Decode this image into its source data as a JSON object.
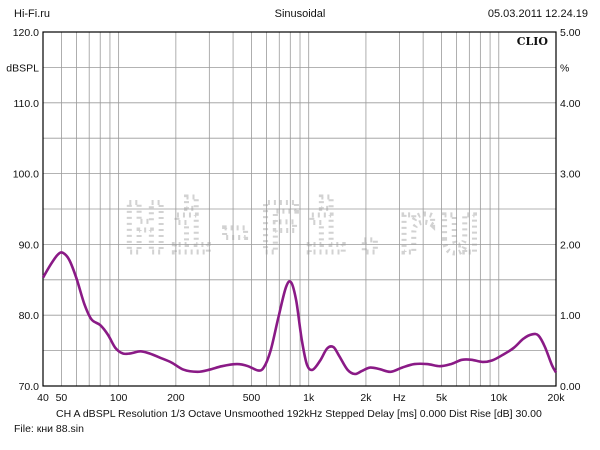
{
  "header": {
    "left": "Hi-Fi.ru",
    "center": "Sinusoidal",
    "right": "05.03.2011 12.24.19"
  },
  "brand": "CLIO",
  "watermark": "Hi-Fi.ru",
  "footer": {
    "line": "CH A   dBSPL   Resolution 1/3 Octave   Unsmoothed   192kHz   Stepped     Delay [ms] 0.000    Dist Rise [dB] 30.00",
    "file": "File: кни 88.sin"
  },
  "colors": {
    "curve": "#8a1a86",
    "grid": "#9a9a9a",
    "frame": "#000000",
    "watermark": "#d2d2d2"
  },
  "chart_data": {
    "type": "line",
    "title": "",
    "xscale": "log",
    "xlim": [
      40,
      20000
    ],
    "ylim": [
      70,
      120
    ],
    "y2lim": [
      0,
      5
    ],
    "ylabel": "dBSPL",
    "y2label": "%",
    "xlabel_unit": "Hz",
    "grid": true,
    "x_ticks": [
      {
        "v": 40,
        "label": "40"
      },
      {
        "v": 50,
        "label": "50"
      },
      {
        "v": 100,
        "label": "100"
      },
      {
        "v": 200,
        "label": "200"
      },
      {
        "v": 500,
        "label": "500"
      },
      {
        "v": 1000,
        "label": "1k"
      },
      {
        "v": 2000,
        "label": "2k"
      },
      {
        "v": 5000,
        "label": "5k"
      },
      {
        "v": 10000,
        "label": "10k"
      },
      {
        "v": 20000,
        "label": "20k"
      }
    ],
    "y_ticks": [
      {
        "v": 120,
        "label": "120.0"
      },
      {
        "v": 110,
        "label": "110.0"
      },
      {
        "v": 100,
        "label": "100.0"
      },
      {
        "v": 90,
        "label": "90.0"
      },
      {
        "v": 80,
        "label": "80.0"
      },
      {
        "v": 70,
        "label": "70.0"
      }
    ],
    "y2_ticks": [
      {
        "v": 5,
        "label": "5.00"
      },
      {
        "v": 4,
        "label": "4.00"
      },
      {
        "v": 3,
        "label": "3.00"
      },
      {
        "v": 2,
        "label": "2.00"
      },
      {
        "v": 1,
        "label": "1.00"
      },
      {
        "v": 0,
        "label": "0.00"
      }
    ],
    "series": [
      {
        "color": "#8a1a86",
        "points": [
          [
            40,
            85.3
          ],
          [
            44,
            87.2
          ],
          [
            48,
            88.6
          ],
          [
            51,
            88.8
          ],
          [
            55,
            87.8
          ],
          [
            60,
            85.2
          ],
          [
            66,
            81.6
          ],
          [
            72,
            79.4
          ],
          [
            80,
            78.6
          ],
          [
            88,
            77.2
          ],
          [
            96,
            75.4
          ],
          [
            105,
            74.6
          ],
          [
            115,
            74.6
          ],
          [
            130,
            74.9
          ],
          [
            145,
            74.6
          ],
          [
            165,
            74.0
          ],
          [
            190,
            73.3
          ],
          [
            220,
            72.3
          ],
          [
            260,
            72.0
          ],
          [
            300,
            72.3
          ],
          [
            350,
            72.8
          ],
          [
            420,
            73.1
          ],
          [
            480,
            72.8
          ],
          [
            540,
            72.2
          ],
          [
            580,
            72.6
          ],
          [
            630,
            75.0
          ],
          [
            690,
            79.5
          ],
          [
            760,
            84.0
          ],
          [
            810,
            84.6
          ],
          [
            860,
            82.0
          ],
          [
            920,
            76.5
          ],
          [
            980,
            73.0
          ],
          [
            1050,
            72.3
          ],
          [
            1150,
            73.6
          ],
          [
            1250,
            75.3
          ],
          [
            1350,
            75.5
          ],
          [
            1450,
            74.2
          ],
          [
            1600,
            72.3
          ],
          [
            1750,
            71.7
          ],
          [
            1900,
            72.1
          ],
          [
            2100,
            72.6
          ],
          [
            2350,
            72.4
          ],
          [
            2700,
            72.0
          ],
          [
            3100,
            72.6
          ],
          [
            3600,
            73.1
          ],
          [
            4200,
            73.1
          ],
          [
            4900,
            72.8
          ],
          [
            5600,
            73.1
          ],
          [
            6400,
            73.7
          ],
          [
            7200,
            73.7
          ],
          [
            8200,
            73.4
          ],
          [
            9200,
            73.6
          ],
          [
            10500,
            74.4
          ],
          [
            12000,
            75.4
          ],
          [
            13500,
            76.7
          ],
          [
            15000,
            77.3
          ],
          [
            16200,
            77.1
          ],
          [
            17500,
            75.5
          ],
          [
            19000,
            73.0
          ],
          [
            20000,
            71.9
          ]
        ]
      }
    ]
  }
}
